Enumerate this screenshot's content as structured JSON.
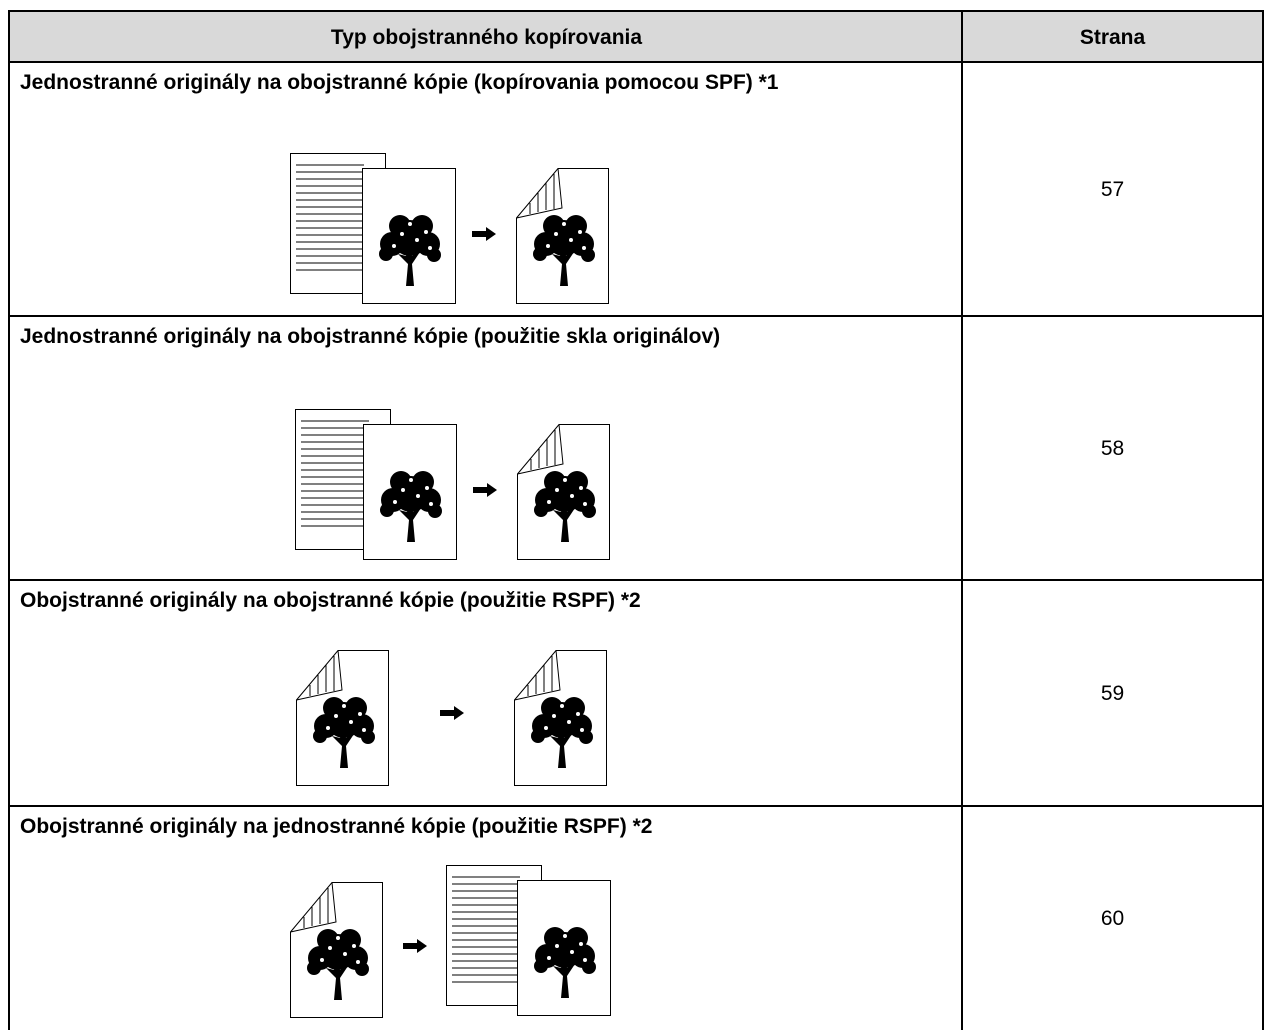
{
  "table": {
    "header": [
      "Typ obojstranného kopírovania",
      "Strana"
    ],
    "rows": [
      [
        "Jednostranné originály na obojstranné kópie (kopírovania pomocou SPF) *1",
        57
      ],
      [
        "Jednostranné originály na obojstranné kópie (použitie skla originálov)",
        58
      ],
      [
        "Obojstranné originály na obojstranné kópie (použitie RSPF) *2",
        59
      ],
      [
        "Obojstranné originály na jednostranné kópie (použitie RSPF) *2",
        60
      ]
    ]
  }
}
